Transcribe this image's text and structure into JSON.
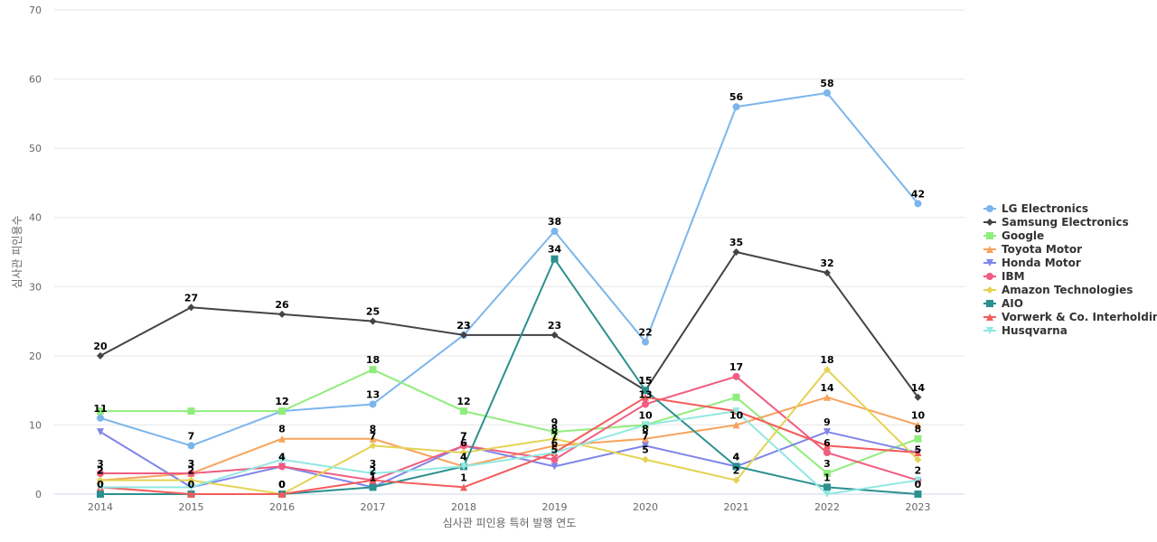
{
  "chart_data": {
    "type": "line",
    "title": "",
    "xlabel": "심사관 피인용 특허 발행 연도",
    "ylabel": "심사관 피인용수",
    "x": [
      2014,
      2015,
      2016,
      2017,
      2018,
      2019,
      2020,
      2021,
      2022,
      2023
    ],
    "ylim": [
      0,
      70
    ],
    "yticks": [
      0,
      10,
      20,
      30,
      40,
      50,
      60,
      70
    ],
    "grid": true,
    "legend_position": "right",
    "series": [
      {
        "name": "LG Electronics",
        "color": "#7cb5ec",
        "marker": "circle",
        "values": [
          11,
          7,
          12,
          13,
          23,
          38,
          22,
          56,
          58,
          42
        ]
      },
      {
        "name": "Samsung Electronics",
        "color": "#434348",
        "marker": "diamond",
        "values": [
          20,
          27,
          26,
          25,
          23,
          23,
          15,
          35,
          32,
          14
        ]
      },
      {
        "name": "Google",
        "color": "#90ed7d",
        "marker": "square",
        "values": [
          12,
          12,
          12,
          18,
          12,
          9,
          10,
          14,
          3,
          8
        ]
      },
      {
        "name": "Toyota Motor",
        "color": "#f7a35c",
        "marker": "triangle",
        "values": [
          2,
          3,
          8,
          8,
          4,
          7,
          8,
          10,
          14,
          10
        ]
      },
      {
        "name": "Honda Motor",
        "color": "#8085e9",
        "marker": "triangle-down",
        "values": [
          9,
          1,
          4,
          1,
          7,
          4,
          7,
          4,
          9,
          6
        ]
      },
      {
        "name": "IBM",
        "color": "#f15c80",
        "marker": "circle",
        "values": [
          3,
          3,
          4,
          2,
          7,
          5,
          13,
          17,
          6,
          2
        ]
      },
      {
        "name": "Amazon Technologies",
        "color": "#e4d354",
        "marker": "diamond",
        "values": [
          2,
          2,
          0,
          7,
          6,
          8,
          5,
          2,
          18,
          5
        ]
      },
      {
        "name": "AIO",
        "color": "#2b908f",
        "marker": "square",
        "values": [
          0,
          0,
          0,
          1,
          4,
          34,
          15,
          4,
          1,
          0
        ]
      },
      {
        "name": "Vorwerk & Co. Interholding",
        "color": "#f45b5b",
        "marker": "triangle",
        "values": [
          1,
          0,
          0,
          2,
          1,
          6,
          14,
          12,
          7,
          6
        ]
      },
      {
        "name": "Husqvarna",
        "color": "#91e8e1",
        "marker": "triangle-down",
        "values": [
          1,
          1,
          5,
          3,
          4,
          6,
          10,
          12,
          0,
          2
        ]
      }
    ],
    "data_labels": [
      {
        "series": 0,
        "points": [
          0,
          1,
          2,
          3,
          4,
          5,
          6,
          7,
          8,
          9
        ]
      },
      {
        "series": 1,
        "points": [
          0,
          1,
          2,
          3,
          4,
          5,
          6,
          7,
          8,
          9
        ]
      },
      {
        "series": 2,
        "points": [
          2,
          3,
          4,
          5,
          6,
          8,
          9
        ]
      },
      {
        "series": 3,
        "points": [
          0,
          1,
          2,
          3,
          4,
          5,
          6,
          7,
          8,
          9
        ]
      },
      {
        "series": 4,
        "points": [
          2,
          3,
          4,
          6,
          7,
          8
        ]
      },
      {
        "series": 5,
        "points": [
          0,
          1,
          2,
          3,
          4,
          5,
          6,
          7,
          8,
          9
        ]
      },
      {
        "series": 6,
        "points": [
          0,
          1,
          2,
          3,
          4,
          5,
          6,
          7,
          8,
          9
        ]
      },
      {
        "series": 7,
        "points": [
          0,
          1,
          2,
          3,
          4,
          5,
          6,
          7,
          8,
          9
        ]
      },
      {
        "series": 8,
        "points": [
          2,
          4
        ]
      },
      {
        "series": 9,
        "points": [
          3,
          5
        ]
      }
    ]
  }
}
